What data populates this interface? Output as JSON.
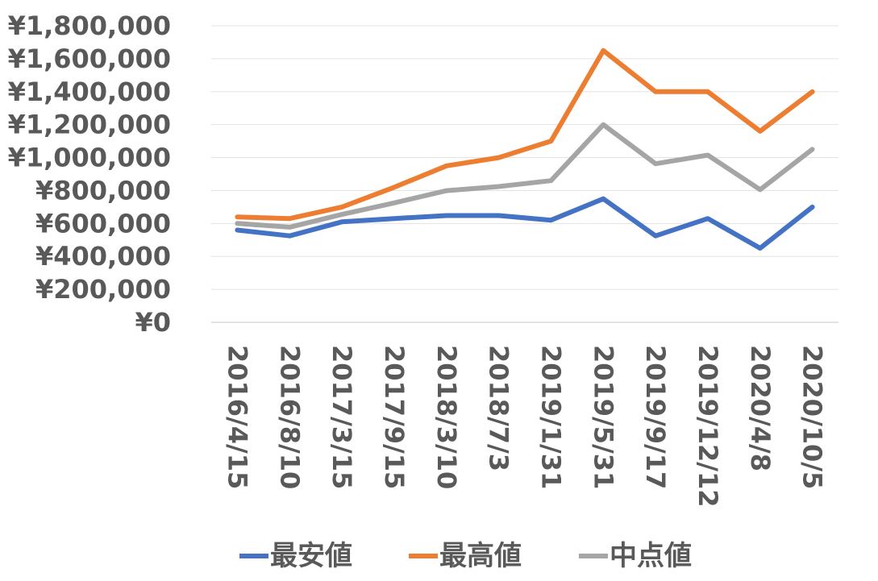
{
  "chart_data": {
    "type": "line",
    "title": "",
    "xlabel": "",
    "ylabel": "",
    "categories": [
      "2016/4/15",
      "2016/8/10",
      "2017/3/15",
      "2017/9/15",
      "2018/3/10",
      "2018/7/3",
      "2019/1/31",
      "2019/5/31",
      "2019/9/17",
      "2019/12/12",
      "2020/4/8",
      "2020/10/5"
    ],
    "y_ticks": [
      "¥0",
      "¥200,000",
      "¥400,000",
      "¥600,000",
      "¥800,000",
      "¥1,000,000",
      "¥1,200,000",
      "¥1,400,000",
      "¥1,600,000",
      "¥1,800,000"
    ],
    "ylim": [
      0,
      1800000
    ],
    "grid": true,
    "legend_position": "bottom",
    "series": [
      {
        "name": "最安値",
        "color": "#4472C4",
        "values": [
          560000,
          525000,
          610000,
          630000,
          648000,
          648000,
          620000,
          750000,
          525000,
          630000,
          450000,
          700000
        ]
      },
      {
        "name": "最高値",
        "color": "#ED7D31",
        "values": [
          640000,
          630000,
          700000,
          820000,
          950000,
          1000000,
          1100000,
          1650000,
          1400000,
          1400000,
          1160000,
          1400000
        ]
      },
      {
        "name": "中点値",
        "color": "#A5A5A5",
        "values": [
          600000,
          577500,
          655000,
          725000,
          799000,
          824000,
          860000,
          1200000,
          962500,
          1015000,
          805000,
          1050000
        ]
      }
    ]
  }
}
